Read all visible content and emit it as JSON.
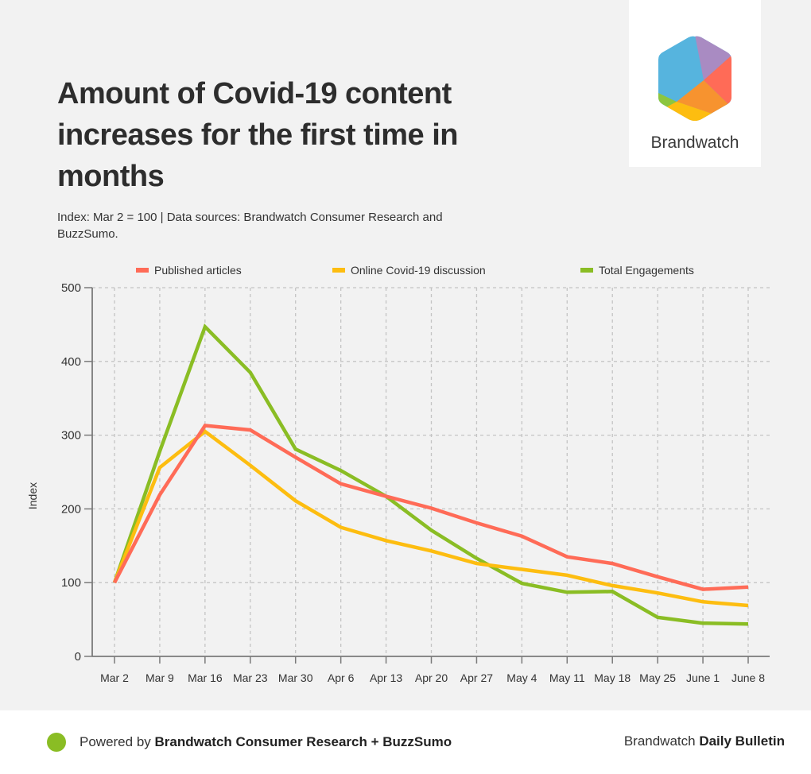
{
  "header": {
    "title": "Amount of Covid-19 content increases for the first time in months",
    "subtitle": "Index: Mar 2 = 100 | Data sources: Brandwatch Consumer Research and BuzzSumo."
  },
  "logo": {
    "name": "Brandwatch",
    "icon": "brandwatch-hexagon-logo",
    "colors": [
      "#56b4de",
      "#a98bc2",
      "#ff6b57",
      "#f7932f",
      "#fdbd10",
      "#8cc63f"
    ]
  },
  "chart_data": {
    "type": "line",
    "title": "Amount of Covid-19 content increases for the first time in months",
    "xlabel": "",
    "ylabel": "Index",
    "ylim": [
      0,
      500
    ],
    "yticks": [
      0,
      100,
      200,
      300,
      400,
      500
    ],
    "grid": true,
    "legend_position": "top",
    "categories": [
      "Mar 2",
      "Mar 9",
      "Mar 16",
      "Mar 23",
      "Mar 30",
      "Apr 6",
      "Apr 13",
      "Apr 20",
      "Apr 27",
      "May 4",
      "May 11",
      "May 18",
      "May 25",
      "June 1",
      "June 8"
    ],
    "series": [
      {
        "name": "Published articles",
        "color": "#ff6b57",
        "values": [
          100,
          219,
          313,
          307,
          270,
          234,
          217,
          201,
          181,
          163,
          135,
          126,
          108,
          91,
          94
        ]
      },
      {
        "name": "Online Covid-19 discussion",
        "color": "#fdbd10",
        "values": [
          100,
          256,
          305,
          259,
          211,
          175,
          157,
          143,
          126,
          118,
          110,
          96,
          86,
          74,
          69
        ]
      },
      {
        "name": "Total Engagements",
        "color": "#8abd24",
        "values": [
          100,
          278,
          447,
          385,
          281,
          252,
          217,
          171,
          133,
          99,
          87,
          88,
          53,
          45,
          44
        ]
      }
    ]
  },
  "footer": {
    "dot_color": "#8abd24",
    "powered_prefix": "Powered by ",
    "powered_bold": "Brandwatch Consumer Research + BuzzSumo",
    "brand_prefix": "Brandwatch ",
    "brand_bold": "Daily Bulletin"
  }
}
